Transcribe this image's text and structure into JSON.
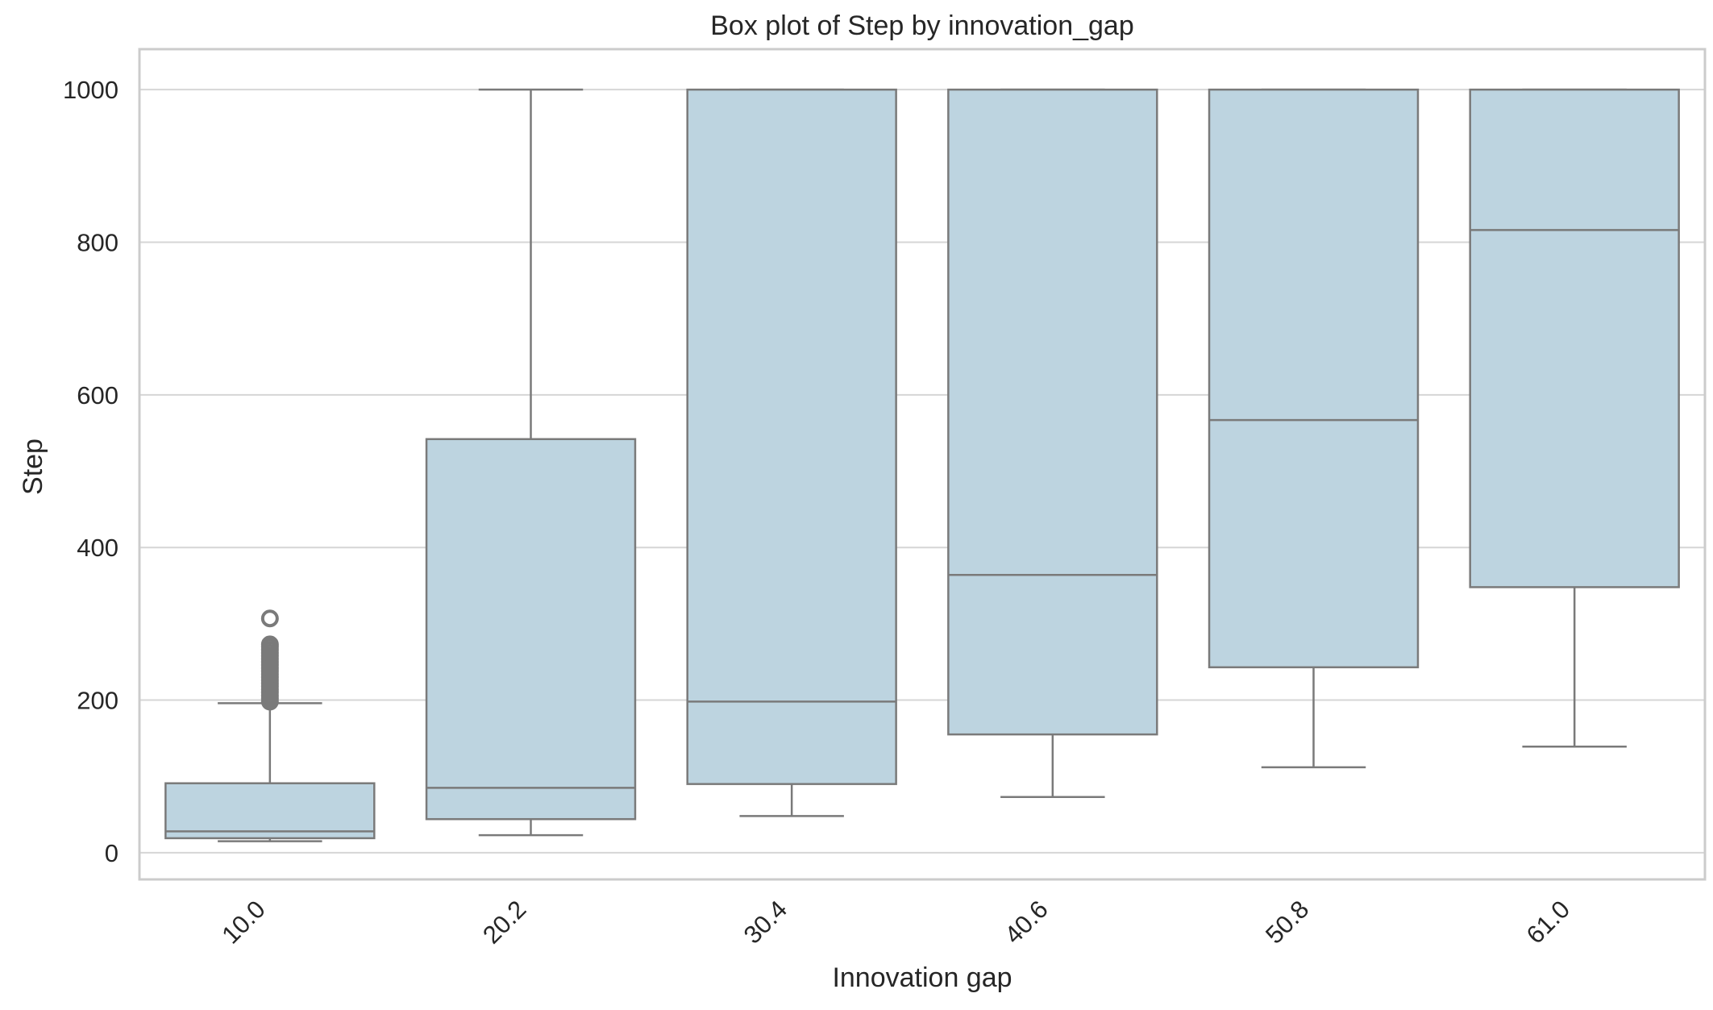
{
  "chart_data": {
    "type": "box",
    "title": "Box plot of Step by innovation_gap",
    "xlabel": "Innovation gap",
    "ylabel": "Step",
    "categories": [
      "10.0",
      "20.2",
      "30.4",
      "40.6",
      "50.8",
      "61.0"
    ],
    "y_ticks": [
      "0",
      "200",
      "400",
      "600",
      "800",
      "1000"
    ],
    "ylim": [
      -35,
      1053
    ],
    "grid": true,
    "legend": "none",
    "colors": {
      "box_fill": "#bdd4e0",
      "line": "#7a7a7a",
      "grid": "#d6d6d6",
      "frame": "#cccccc"
    },
    "boxes": [
      {
        "category": "10.0",
        "whisker_low": 15,
        "q1": 19,
        "median": 28,
        "q3": 91,
        "whisker_high": 196,
        "outliers": [
          198,
          202,
          206,
          210,
          214,
          218,
          222,
          226,
          230,
          234,
          238,
          242,
          246,
          250,
          254,
          258,
          262,
          266,
          270,
          273,
          307
        ]
      },
      {
        "category": "20.2",
        "whisker_low": 23,
        "q1": 44,
        "median": 85,
        "q3": 542,
        "whisker_high": 1000,
        "outliers": []
      },
      {
        "category": "30.4",
        "whisker_low": 48,
        "q1": 90,
        "median": 198,
        "q3": 1000,
        "whisker_high": 1000,
        "outliers": []
      },
      {
        "category": "40.6",
        "whisker_low": 73,
        "q1": 155,
        "median": 364,
        "q3": 1000,
        "whisker_high": 1000,
        "outliers": []
      },
      {
        "category": "50.8",
        "whisker_low": 112,
        "q1": 243,
        "median": 567,
        "q3": 1000,
        "whisker_high": 1000,
        "outliers": []
      },
      {
        "category": "61.0",
        "whisker_low": 139,
        "q1": 348,
        "median": 816,
        "q3": 1000,
        "whisker_high": 1000,
        "outliers": []
      }
    ]
  }
}
